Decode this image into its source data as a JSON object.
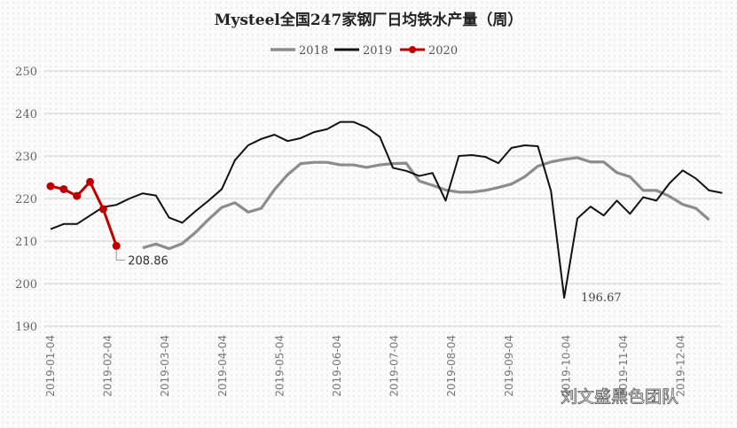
{
  "chart_data": {
    "type": "line",
    "title": "Mysteel全国247家钢厂日均铁水产量（周）",
    "xlabel": "",
    "ylabel": "",
    "ylim": [
      190,
      250
    ],
    "yticks": [
      "190",
      "200",
      "210",
      "220",
      "230",
      "240",
      "250"
    ],
    "grid": true,
    "legend_position": "top",
    "x_unit": "week of year",
    "xtick_labels": [
      "2019-01-04",
      "2019-02-04",
      "2019-03-04",
      "2019-04-04",
      "2019-05-04",
      "2019-06-04",
      "2019-07-04",
      "2019-08-04",
      "2019-09-04",
      "2019-10-04",
      "2019-11-04",
      "2019-12-04"
    ],
    "series": [
      {
        "name": "2018",
        "color": "#8c8c8c",
        "start_week": 7,
        "values": [
          208.4,
          209.3,
          208.2,
          209.4,
          212,
          215.1,
          217.9,
          219,
          216.8,
          217.7,
          222.1,
          225.6,
          228.2,
          228.5,
          228.5,
          227.9,
          227.9,
          227.3,
          227.9,
          228.2,
          228.3,
          224.1,
          223.1,
          222.0,
          221.5,
          221.5,
          221.9,
          222.6,
          223.4,
          225.1,
          227.6,
          228.6,
          229.2,
          229.6,
          228.6,
          228.6,
          226.1,
          225.1,
          221.9,
          221.9,
          220.5,
          218.6,
          217.7,
          215.0
        ]
      },
      {
        "name": "2019",
        "color": "#111111",
        "start_week": 0,
        "values": [
          212.8,
          214,
          214,
          216,
          218,
          218.5,
          220,
          221.2,
          220.7,
          215.5,
          214.3,
          217,
          219.5,
          222.2,
          229,
          232.5,
          234,
          235,
          233.5,
          234.2,
          235.6,
          236.3,
          238,
          238,
          236.7,
          234.5,
          227.2,
          226.5,
          225.3,
          226,
          219.5,
          230,
          230.2,
          229.8,
          228.3,
          231.9,
          232.5,
          232.3,
          221.7,
          196.67,
          215.3,
          218.1,
          216,
          219.5,
          216.4,
          220.3,
          219.5,
          223.6,
          226.6,
          224.7,
          221.9,
          221.3
        ]
      },
      {
        "name": "2020",
        "color": "#c00000",
        "start_week": 0,
        "markers": true,
        "values": [
          222.9,
          222.2,
          220.6,
          223.9,
          217.5,
          208.86
        ]
      }
    ],
    "annotations": [
      {
        "series": "2020",
        "text": "208.86"
      },
      {
        "series": "2019",
        "text": "196.67"
      }
    ]
  },
  "watermark": "刘文盛黑色团队"
}
